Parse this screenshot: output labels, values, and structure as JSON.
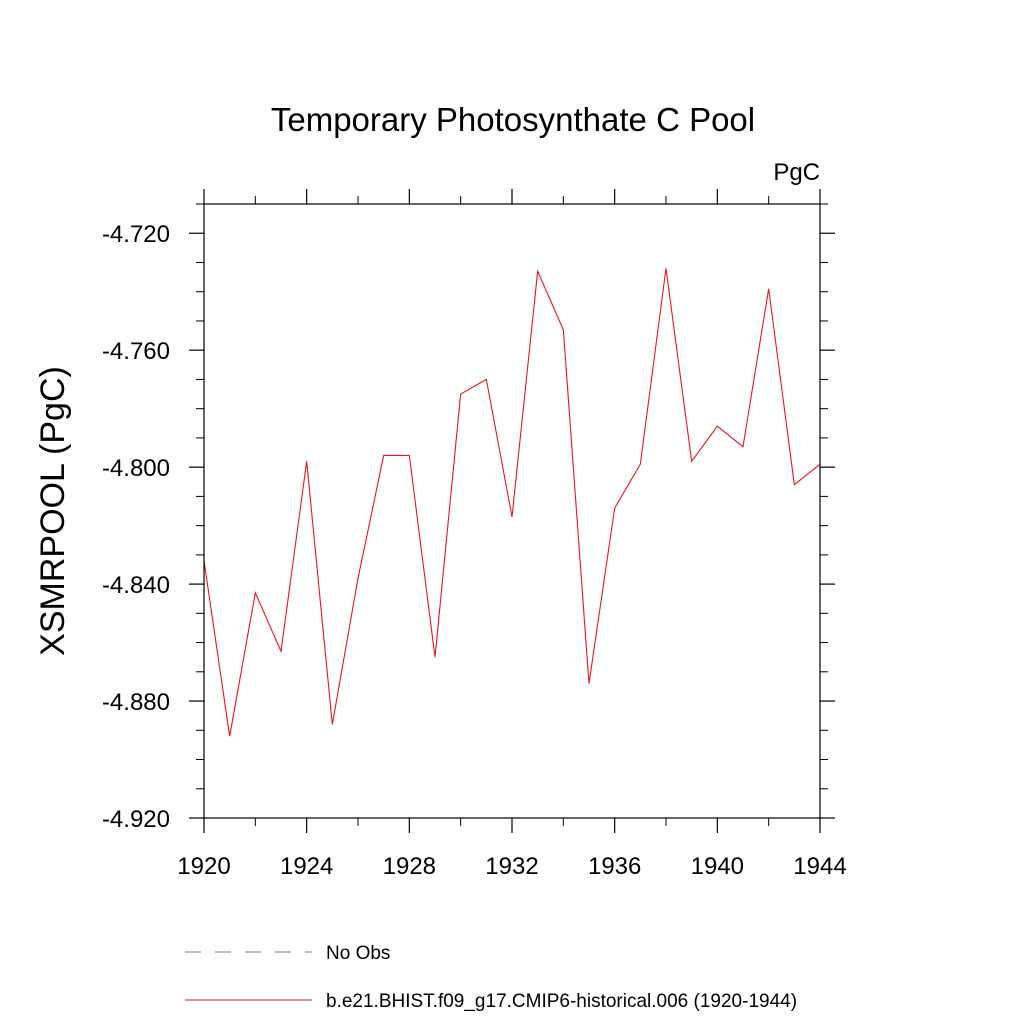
{
  "chart_data": {
    "type": "line",
    "title": "Temporary Photosynthate C Pool",
    "units_label": "PgC",
    "ylabel": "XSMRPOOL  (PgC)",
    "xlabel": "",
    "xlim": [
      1920,
      1944
    ],
    "ylim": [
      -4.92,
      -4.71
    ],
    "x_ticks": [
      1920,
      1924,
      1928,
      1932,
      1936,
      1940,
      1944
    ],
    "x_tick_labels": [
      "1920",
      "1924",
      "1928",
      "1932",
      "1936",
      "1940",
      "1944"
    ],
    "y_ticks": [
      -4.92,
      -4.88,
      -4.84,
      -4.8,
      -4.76,
      -4.72
    ],
    "y_tick_labels": [
      "-4.920",
      "-4.880",
      "-4.840",
      "-4.800",
      "-4.760",
      "-4.720"
    ],
    "grid": false,
    "legend_placement": "bottom",
    "series": [
      {
        "name": "No Obs",
        "color": "#7b6fc4",
        "dash": true,
        "x": [],
        "values": []
      },
      {
        "name": "b.e21.BHIST.f09_g17.CMIP6-historical.006 (1920-1944)",
        "color": "#e8151b",
        "dash": false,
        "x": [
          1920,
          1921,
          1922,
          1923,
          1924,
          1925,
          1926,
          1927,
          1928,
          1929,
          1930,
          1931,
          1932,
          1933,
          1934,
          1935,
          1936,
          1937,
          1938,
          1939,
          1940,
          1941,
          1942,
          1943,
          1944
        ],
        "values": [
          -4.832,
          -4.892,
          -4.843,
          -4.863,
          -4.798,
          -4.888,
          -4.838,
          -4.796,
          -4.796,
          -4.865,
          -4.775,
          -4.77,
          -4.817,
          -4.733,
          -4.753,
          -4.874,
          -4.814,
          -4.799,
          -4.732,
          -4.798,
          -4.786,
          -4.793,
          -4.739,
          -4.806,
          -4.799
        ]
      }
    ]
  }
}
